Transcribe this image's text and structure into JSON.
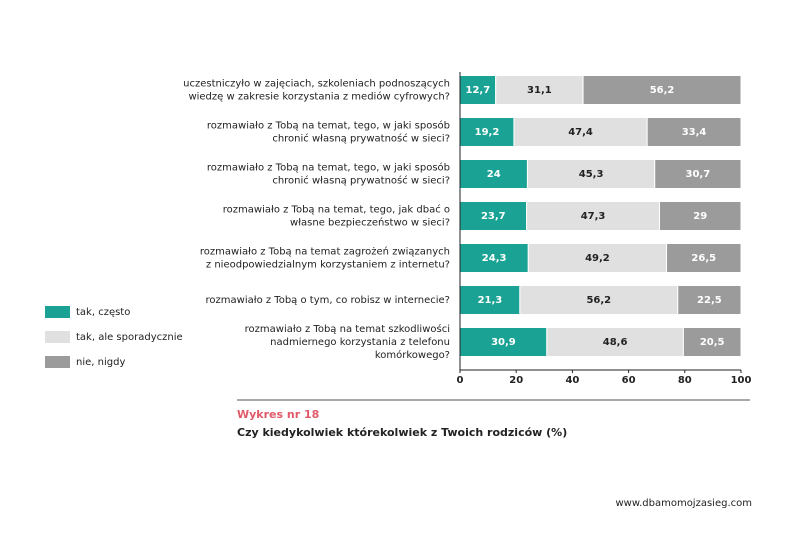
{
  "chart_data": {
    "type": "stacked-bar-horizontal",
    "figure_label": "Wykres nr 18",
    "title": "Czy kiedykolwiek którekolwiek z Twoich rodziców (%)",
    "source": "www.dbamomojzasieg.com",
    "categories": [
      [
        "uczestniczyło w zajęciach, szkoleniach podnoszących",
        "wiedzę w zakresie korzystania z mediów cyfrowych?"
      ],
      [
        "rozmawiało z Tobą na temat, tego, w jaki sposób",
        "chronić własną prywatność w sieci?"
      ],
      [
        "rozmawiało z Tobą na temat, tego, w jaki sposób",
        "chronić własną prywatność w sieci?"
      ],
      [
        "rozmawiało z Tobą na temat, tego, jak dbać o",
        "własne bezpieczeństwo w sieci?"
      ],
      [
        "rozmawiało z Tobą na temat zagrożeń związanych",
        "z nieodpowiedzialnym korzystaniem z internetu?"
      ],
      [
        "rozmawiało z Tobą o tym, co robisz w internecie?"
      ],
      [
        "rozmawiało z Tobą na temat szkodliwości",
        "nadmiernego korzystania z telefonu",
        "komórkowego?"
      ]
    ],
    "series": [
      {
        "name": "tak, często",
        "color": "#1aa394",
        "label_color": "#ffffff",
        "values": [
          12.7,
          19.2,
          24,
          23.7,
          24.3,
          21.3,
          30.9
        ],
        "value_labels": [
          "12,7",
          "19,2",
          "24",
          "23,7",
          "24,3",
          "21,3",
          "30,9"
        ]
      },
      {
        "name": "tak, ale sporadycznie",
        "color": "#e0e0e0",
        "label_color": "#222222",
        "values": [
          31.1,
          47.4,
          45.3,
          47.3,
          49.2,
          56.2,
          48.6
        ],
        "value_labels": [
          "31,1",
          "47,4",
          "45,3",
          "47,3",
          "49,2",
          "56,2",
          "48,6"
        ]
      },
      {
        "name": "nie, nigdy",
        "color": "#9b9b9b",
        "label_color": "#ffffff",
        "values": [
          56.2,
          33.4,
          30.7,
          29,
          26.5,
          22.5,
          20.5
        ],
        "value_labels": [
          "56,2",
          "33,4",
          "30,7",
          "29",
          "26,5",
          "22,5",
          "20,5"
        ]
      }
    ],
    "xlim": [
      0,
      100
    ],
    "xticks": [
      0,
      20,
      40,
      60,
      80,
      100
    ]
  }
}
